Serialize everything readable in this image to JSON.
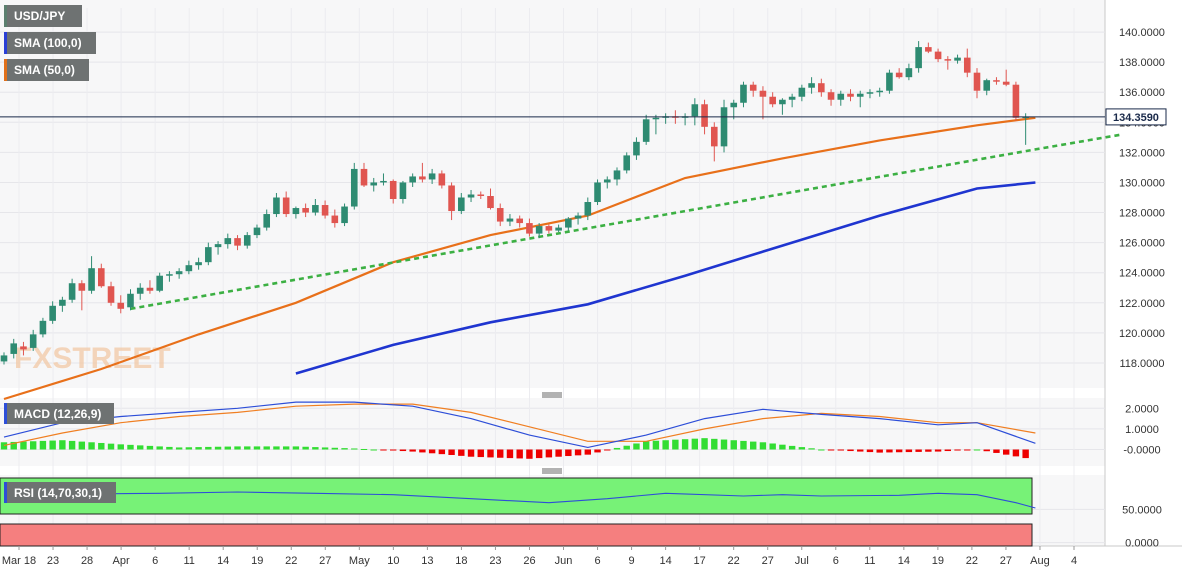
{
  "instrument": "USD/JPY",
  "watermark": "FXSTREET",
  "last_price_label": "134.3590",
  "legend": [
    {
      "label": "USD/JPY",
      "color": "#5b7f6f"
    },
    {
      "label": "SMA (100,0)",
      "color": "#2a3fd6"
    },
    {
      "label": "SMA (50,0)",
      "color": "#e0701a"
    }
  ],
  "colors": {
    "up": "#2e8b72",
    "down": "#e05550",
    "sma100": "#1f35d0",
    "sma50": "#e8701a",
    "trendline": "#3cb043",
    "macd_line": "#2d4ed8",
    "signal_line": "#f07f22",
    "hist_pos": "#33dd33",
    "hist_neg": "#ee0000",
    "rsi_overbought": "#77f277",
    "rsi_oversold": "#f57f7f"
  },
  "x_axis": {
    "labels": [
      "Mar 18",
      "23",
      "28",
      "Apr",
      "6",
      "11",
      "14",
      "19",
      "22",
      "27",
      "May",
      "10",
      "13",
      "18",
      "23",
      "26",
      "Jun",
      "6",
      "9",
      "14",
      "17",
      "22",
      "27",
      "Jul",
      "6",
      "11",
      "14",
      "19",
      "22",
      "27",
      "Aug",
      "4"
    ]
  },
  "chart_data": [
    {
      "type": "candlestick",
      "title": "USD/JPY",
      "ylim": [
        116.6,
        141.6
      ],
      "y_ticks": [
        "140.0000",
        "138.0000",
        "136.0000",
        "134.0000",
        "132.0000",
        "130.0000",
        "128.0000",
        "126.0000",
        "124.0000",
        "122.0000",
        "120.0000",
        "118.0000"
      ],
      "last_price": 134.359,
      "candles": [
        {
          "o": 118.1,
          "h": 118.7,
          "l": 117.9,
          "c": 118.5
        },
        {
          "o": 118.6,
          "h": 119.6,
          "l": 118.3,
          "c": 119.3
        },
        {
          "o": 119.1,
          "h": 119.4,
          "l": 118.5,
          "c": 118.9
        },
        {
          "o": 119.0,
          "h": 120.2,
          "l": 118.8,
          "c": 119.9
        },
        {
          "o": 119.9,
          "h": 121.0,
          "l": 119.7,
          "c": 120.8
        },
        {
          "o": 120.8,
          "h": 122.1,
          "l": 120.6,
          "c": 121.8
        },
        {
          "o": 121.8,
          "h": 122.4,
          "l": 121.4,
          "c": 122.2
        },
        {
          "o": 122.2,
          "h": 123.6,
          "l": 122.0,
          "c": 123.3
        },
        {
          "o": 123.3,
          "h": 123.5,
          "l": 121.5,
          "c": 122.8
        },
        {
          "o": 122.8,
          "h": 125.1,
          "l": 122.6,
          "c": 124.3
        },
        {
          "o": 124.3,
          "h": 124.6,
          "l": 123.0,
          "c": 123.1
        },
        {
          "o": 123.1,
          "h": 123.4,
          "l": 121.8,
          "c": 122.0
        },
        {
          "o": 122.0,
          "h": 122.5,
          "l": 121.3,
          "c": 121.6
        },
        {
          "o": 121.7,
          "h": 122.9,
          "l": 121.5,
          "c": 122.6
        },
        {
          "o": 122.6,
          "h": 123.3,
          "l": 122.2,
          "c": 123.0
        },
        {
          "o": 123.0,
          "h": 123.5,
          "l": 122.6,
          "c": 122.8
        },
        {
          "o": 122.8,
          "h": 124.0,
          "l": 122.7,
          "c": 123.8
        },
        {
          "o": 123.8,
          "h": 124.1,
          "l": 123.4,
          "c": 123.9
        },
        {
          "o": 123.9,
          "h": 124.3,
          "l": 123.6,
          "c": 124.1
        },
        {
          "o": 124.1,
          "h": 124.8,
          "l": 123.9,
          "c": 124.5
        },
        {
          "o": 124.5,
          "h": 125.0,
          "l": 124.2,
          "c": 124.7
        },
        {
          "o": 124.7,
          "h": 126.0,
          "l": 124.5,
          "c": 125.7
        },
        {
          "o": 125.7,
          "h": 126.1,
          "l": 125.2,
          "c": 125.9
        },
        {
          "o": 125.9,
          "h": 126.6,
          "l": 125.6,
          "c": 126.3
        },
        {
          "o": 126.3,
          "h": 126.5,
          "l": 125.5,
          "c": 125.8
        },
        {
          "o": 125.8,
          "h": 126.7,
          "l": 125.6,
          "c": 126.5
        },
        {
          "o": 126.5,
          "h": 127.2,
          "l": 126.3,
          "c": 127.0
        },
        {
          "o": 127.0,
          "h": 128.2,
          "l": 126.8,
          "c": 127.9
        },
        {
          "o": 127.9,
          "h": 129.3,
          "l": 127.7,
          "c": 129.0
        },
        {
          "o": 129.0,
          "h": 129.4,
          "l": 127.7,
          "c": 127.9
        },
        {
          "o": 127.9,
          "h": 128.4,
          "l": 127.6,
          "c": 128.3
        },
        {
          "o": 128.3,
          "h": 128.6,
          "l": 127.7,
          "c": 128.0
        },
        {
          "o": 128.0,
          "h": 128.9,
          "l": 127.8,
          "c": 128.5
        },
        {
          "o": 128.5,
          "h": 128.8,
          "l": 127.6,
          "c": 127.8
        },
        {
          "o": 127.8,
          "h": 128.2,
          "l": 127.0,
          "c": 127.3
        },
        {
          "o": 127.3,
          "h": 128.6,
          "l": 127.1,
          "c": 128.4
        },
        {
          "o": 128.4,
          "h": 131.3,
          "l": 128.2,
          "c": 130.9
        },
        {
          "o": 130.9,
          "h": 131.3,
          "l": 129.7,
          "c": 129.8
        },
        {
          "o": 129.8,
          "h": 130.3,
          "l": 129.4,
          "c": 130.0
        },
        {
          "o": 130.0,
          "h": 130.6,
          "l": 129.8,
          "c": 130.1
        },
        {
          "o": 130.1,
          "h": 130.2,
          "l": 128.6,
          "c": 128.9
        },
        {
          "o": 128.9,
          "h": 130.1,
          "l": 128.6,
          "c": 130.0
        },
        {
          "o": 130.0,
          "h": 130.6,
          "l": 129.7,
          "c": 130.4
        },
        {
          "o": 130.4,
          "h": 131.3,
          "l": 130.0,
          "c": 130.2
        },
        {
          "o": 130.2,
          "h": 130.9,
          "l": 129.9,
          "c": 130.6
        },
        {
          "o": 130.6,
          "h": 130.8,
          "l": 129.6,
          "c": 129.8
        },
        {
          "o": 129.8,
          "h": 130.0,
          "l": 127.5,
          "c": 128.1
        },
        {
          "o": 128.1,
          "h": 129.3,
          "l": 127.9,
          "c": 129.0
        },
        {
          "o": 129.0,
          "h": 129.5,
          "l": 128.7,
          "c": 129.2
        },
        {
          "o": 129.2,
          "h": 129.4,
          "l": 128.9,
          "c": 129.1
        },
        {
          "o": 129.1,
          "h": 129.6,
          "l": 128.2,
          "c": 128.3
        },
        {
          "o": 128.3,
          "h": 128.6,
          "l": 127.1,
          "c": 127.4
        },
        {
          "o": 127.4,
          "h": 127.9,
          "l": 127.1,
          "c": 127.6
        },
        {
          "o": 127.6,
          "h": 127.8,
          "l": 127.0,
          "c": 127.3
        },
        {
          "o": 127.3,
          "h": 127.6,
          "l": 126.4,
          "c": 126.6
        },
        {
          "o": 126.6,
          "h": 127.3,
          "l": 126.3,
          "c": 127.1
        },
        {
          "o": 127.1,
          "h": 127.2,
          "l": 126.6,
          "c": 126.8
        },
        {
          "o": 126.8,
          "h": 127.2,
          "l": 126.7,
          "c": 127.0
        },
        {
          "o": 127.0,
          "h": 127.7,
          "l": 126.8,
          "c": 127.6
        },
        {
          "o": 127.6,
          "h": 128.0,
          "l": 127.2,
          "c": 127.8
        },
        {
          "o": 127.8,
          "h": 129.0,
          "l": 127.5,
          "c": 128.7
        },
        {
          "o": 128.7,
          "h": 130.2,
          "l": 128.5,
          "c": 130.0
        },
        {
          "o": 130.0,
          "h": 130.4,
          "l": 129.6,
          "c": 130.2
        },
        {
          "o": 130.2,
          "h": 131.0,
          "l": 129.8,
          "c": 130.8
        },
        {
          "o": 130.8,
          "h": 132.0,
          "l": 130.6,
          "c": 131.8
        },
        {
          "o": 131.8,
          "h": 133.0,
          "l": 131.5,
          "c": 132.7
        },
        {
          "o": 132.7,
          "h": 134.5,
          "l": 132.5,
          "c": 134.2
        },
        {
          "o": 134.2,
          "h": 134.5,
          "l": 133.2,
          "c": 134.3
        },
        {
          "o": 134.3,
          "h": 134.6,
          "l": 133.9,
          "c": 134.4
        },
        {
          "o": 134.4,
          "h": 134.8,
          "l": 133.9,
          "c": 134.3
        },
        {
          "o": 134.3,
          "h": 134.6,
          "l": 133.8,
          "c": 134.4
        },
        {
          "o": 134.4,
          "h": 135.6,
          "l": 133.8,
          "c": 135.2
        },
        {
          "o": 135.2,
          "h": 135.5,
          "l": 133.2,
          "c": 133.7
        },
        {
          "o": 133.7,
          "h": 134.0,
          "l": 131.4,
          "c": 132.4
        },
        {
          "o": 132.4,
          "h": 135.5,
          "l": 132.0,
          "c": 135.0
        },
        {
          "o": 135.0,
          "h": 135.5,
          "l": 134.2,
          "c": 135.3
        },
        {
          "o": 135.3,
          "h": 136.7,
          "l": 135.0,
          "c": 136.5
        },
        {
          "o": 136.5,
          "h": 136.7,
          "l": 135.7,
          "c": 136.1
        },
        {
          "o": 136.1,
          "h": 136.4,
          "l": 134.2,
          "c": 135.7
        },
        {
          "o": 135.7,
          "h": 136.0,
          "l": 135.0,
          "c": 135.2
        },
        {
          "o": 135.2,
          "h": 135.6,
          "l": 134.5,
          "c": 135.5
        },
        {
          "o": 135.5,
          "h": 135.9,
          "l": 135.0,
          "c": 135.7
        },
        {
          "o": 135.7,
          "h": 136.5,
          "l": 135.4,
          "c": 136.3
        },
        {
          "o": 136.3,
          "h": 137.0,
          "l": 135.9,
          "c": 136.6
        },
        {
          "o": 136.6,
          "h": 136.9,
          "l": 135.7,
          "c": 136.0
        },
        {
          "o": 136.0,
          "h": 136.2,
          "l": 135.1,
          "c": 135.5
        },
        {
          "o": 135.5,
          "h": 136.1,
          "l": 135.1,
          "c": 135.9
        },
        {
          "o": 135.9,
          "h": 136.2,
          "l": 135.4,
          "c": 135.7
        },
        {
          "o": 135.7,
          "h": 136.1,
          "l": 135.0,
          "c": 135.9
        },
        {
          "o": 135.9,
          "h": 136.2,
          "l": 135.6,
          "c": 136.0
        },
        {
          "o": 136.0,
          "h": 136.3,
          "l": 135.7,
          "c": 136.1
        },
        {
          "o": 136.1,
          "h": 137.5,
          "l": 135.9,
          "c": 137.3
        },
        {
          "o": 137.3,
          "h": 137.6,
          "l": 136.9,
          "c": 137.0
        },
        {
          "o": 137.0,
          "h": 137.9,
          "l": 136.8,
          "c": 137.6
        },
        {
          "o": 137.6,
          "h": 139.4,
          "l": 137.3,
          "c": 139.0
        },
        {
          "o": 139.0,
          "h": 139.3,
          "l": 138.6,
          "c": 138.7
        },
        {
          "o": 138.7,
          "h": 138.9,
          "l": 138.0,
          "c": 138.2
        },
        {
          "o": 138.2,
          "h": 138.4,
          "l": 137.5,
          "c": 138.1
        },
        {
          "o": 138.1,
          "h": 138.5,
          "l": 137.9,
          "c": 138.3
        },
        {
          "o": 138.3,
          "h": 138.9,
          "l": 137.0,
          "c": 137.3
        },
        {
          "o": 137.3,
          "h": 137.6,
          "l": 135.6,
          "c": 136.1
        },
        {
          "o": 136.1,
          "h": 136.9,
          "l": 135.8,
          "c": 136.8
        },
        {
          "o": 136.8,
          "h": 137.0,
          "l": 136.5,
          "c": 136.7
        },
        {
          "o": 136.7,
          "h": 137.5,
          "l": 136.4,
          "c": 136.5
        },
        {
          "o": 136.5,
          "h": 136.7,
          "l": 134.1,
          "c": 134.3
        },
        {
          "o": 134.3,
          "h": 134.6,
          "l": 132.5,
          "c": 134.36
        }
      ],
      "series": [
        {
          "name": "SMA (50,0)",
          "x": [
            0,
            10,
            20,
            30,
            40,
            50,
            60,
            70,
            80,
            90,
            100,
            106
          ],
          "y": [
            115.6,
            117.6,
            119.9,
            122.0,
            124.7,
            126.5,
            127.8,
            130.3,
            131.6,
            132.8,
            133.8,
            134.3
          ]
        },
        {
          "name": "SMA (100,0)",
          "x": [
            30,
            40,
            50,
            60,
            70,
            80,
            90,
            100,
            106
          ],
          "y": [
            117.3,
            119.2,
            120.7,
            121.9,
            123.8,
            125.8,
            127.8,
            129.6,
            130.0
          ]
        }
      ],
      "trendline": {
        "x": [
          13,
          106,
          115
        ],
        "y": [
          121.6,
          132.2,
          133.2
        ]
      }
    },
    {
      "type": "macd",
      "title": "MACD (12,26,9)",
      "ylim": [
        -0.8,
        2.4
      ],
      "y_ticks": [
        "2.0000",
        "1.0000",
        "-0.0000"
      ],
      "x": [
        0,
        6,
        12,
        18,
        24,
        30,
        36,
        42,
        48,
        54,
        60,
        66,
        72,
        78,
        84,
        90,
        96,
        100,
        106
      ],
      "macd": [
        0.6,
        1.3,
        1.6,
        1.8,
        2.0,
        2.3,
        2.3,
        2.1,
        1.5,
        0.7,
        0.1,
        0.7,
        1.5,
        1.95,
        1.7,
        1.5,
        1.2,
        1.3,
        0.3
      ],
      "signal": [
        0.2,
        0.8,
        1.3,
        1.6,
        1.8,
        2.1,
        2.2,
        2.2,
        1.8,
        1.1,
        0.4,
        0.4,
        1.0,
        1.5,
        1.75,
        1.6,
        1.3,
        1.3,
        0.8
      ],
      "histogram": [
        0.35,
        0.45,
        0.25,
        0.1,
        0.15,
        0.15,
        0.05,
        -0.1,
        -0.35,
        -0.45,
        -0.25,
        0.4,
        0.55,
        0.35,
        0.0,
        -0.15,
        -0.1,
        0.0,
        -0.5
      ]
    },
    {
      "type": "rsi",
      "title": "RSI (14,70,30,1)",
      "ylim": [
        -5,
        100
      ],
      "y_ticks": [
        "50.0000",
        "0.0000"
      ],
      "overbought": 70,
      "oversold": 30,
      "x": [
        0,
        8,
        16,
        24,
        32,
        40,
        48,
        56,
        62,
        68,
        76,
        80,
        84,
        92,
        96,
        100,
        104,
        106
      ],
      "values": [
        72,
        73,
        74,
        76,
        74,
        72,
        66,
        60,
        66,
        74,
        70,
        72,
        70,
        71,
        74,
        72,
        60,
        52
      ]
    }
  ]
}
